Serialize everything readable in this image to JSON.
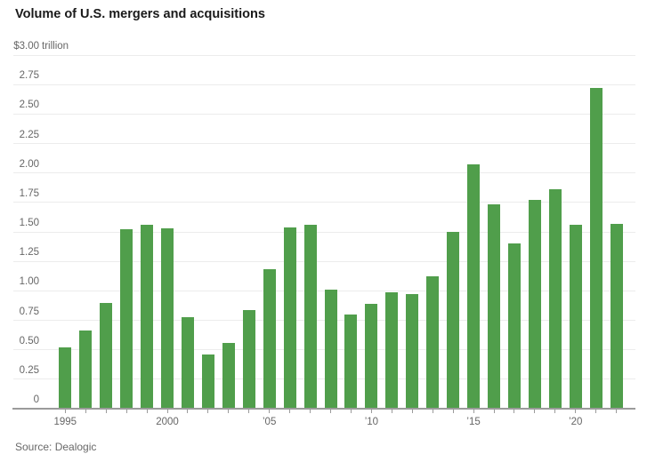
{
  "title": "Volume of U.S. mergers and acquisitions",
  "source": "Source: Dealogic",
  "colors": {
    "bar": "#509e4b",
    "gridline": "#ececec",
    "axis_line": "#9b9b9b",
    "axis_text": "#666666",
    "title_text": "#1a1a1a",
    "source_text": "#696969",
    "background": "#ffffff"
  },
  "chart_data": {
    "type": "bar",
    "title": "Volume of U.S. mergers and acquisitions",
    "source": "Source: Dealogic",
    "unit": "trillion USD",
    "ylim": [
      0,
      3.0
    ],
    "y_tick_interval": 0.25,
    "grid": true,
    "legend": null,
    "y_ticks": [
      {
        "value": 0,
        "label": "0"
      },
      {
        "value": 0.25,
        "label": "0.25"
      },
      {
        "value": 0.5,
        "label": "0.50"
      },
      {
        "value": 0.75,
        "label": "0.75"
      },
      {
        "value": 1,
        "label": "1.00"
      },
      {
        "value": 1.25,
        "label": "1.25"
      },
      {
        "value": 1.5,
        "label": "1.50"
      },
      {
        "value": 1.75,
        "label": "1.75"
      },
      {
        "value": 2,
        "label": "2.00"
      },
      {
        "value": 2.25,
        "label": "2.25"
      },
      {
        "value": 2.5,
        "label": "2.50"
      },
      {
        "value": 2.75,
        "label": "2.75"
      },
      {
        "value": 3,
        "label": "$3.00",
        "suffix": "trillion"
      }
    ],
    "x_tick_labels": [
      {
        "year": 1995,
        "label": "1995"
      },
      {
        "year": 2000,
        "label": "2000"
      },
      {
        "year": 2005,
        "label": "’05"
      },
      {
        "year": 2010,
        "label": "’10"
      },
      {
        "year": 2015,
        "label": "’15"
      },
      {
        "year": 2020,
        "label": "’20"
      }
    ],
    "categories": [
      1995,
      1996,
      1997,
      1998,
      1999,
      2000,
      2001,
      2002,
      2003,
      2004,
      2005,
      2006,
      2007,
      2008,
      2009,
      2010,
      2011,
      2012,
      2013,
      2014,
      2015,
      2016,
      2017,
      2018,
      2019,
      2020,
      2021,
      2022
    ],
    "values": [
      0.52,
      0.66,
      0.9,
      1.52,
      1.56,
      1.53,
      0.78,
      0.46,
      0.56,
      0.84,
      1.18,
      1.54,
      1.56,
      1.01,
      0.8,
      0.89,
      0.99,
      0.97,
      1.12,
      1.5,
      2.07,
      1.73,
      1.4,
      1.77,
      1.86,
      1.56,
      2.72,
      1.57
    ]
  }
}
